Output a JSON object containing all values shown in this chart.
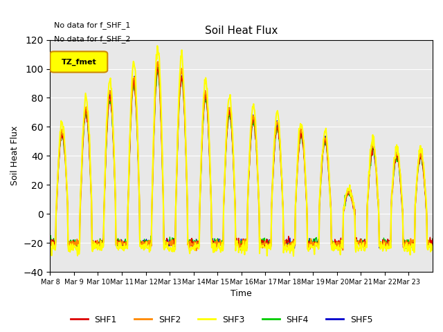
{
  "title": "Soil Heat Flux",
  "ylabel": "Soil Heat Flux",
  "xlabel": "Time",
  "ylim": [
    -40,
    120
  ],
  "annotations": [
    "No data for f_SHF_1",
    "No data for f_SHF_2"
  ],
  "legend_box_label": "TZ_fmet",
  "legend_box_color": "#ffff00",
  "legend_box_border": "#cc8800",
  "x_tick_labels": [
    "Mar 8",
    "Mar 9",
    "Mar 10",
    "Mar 11",
    "Mar 12",
    "Mar 13",
    "Mar 14",
    "Mar 15",
    "Mar 16",
    "Mar 17",
    "Mar 18",
    "Mar 19",
    "Mar 20",
    "Mar 21",
    "Mar 22",
    "Mar 23"
  ],
  "line_colors": {
    "SHF1": "#dd0000",
    "SHF2": "#ff8800",
    "SHF3": "#ffff00",
    "SHF4": "#00cc00",
    "SHF5": "#0000cc"
  },
  "background_plot": "#e8e8e8",
  "background_fig": "#ffffff",
  "grid_color": "#ffffff",
  "yticks": [
    -40,
    -20,
    0,
    20,
    40,
    60,
    80,
    100,
    120
  ]
}
